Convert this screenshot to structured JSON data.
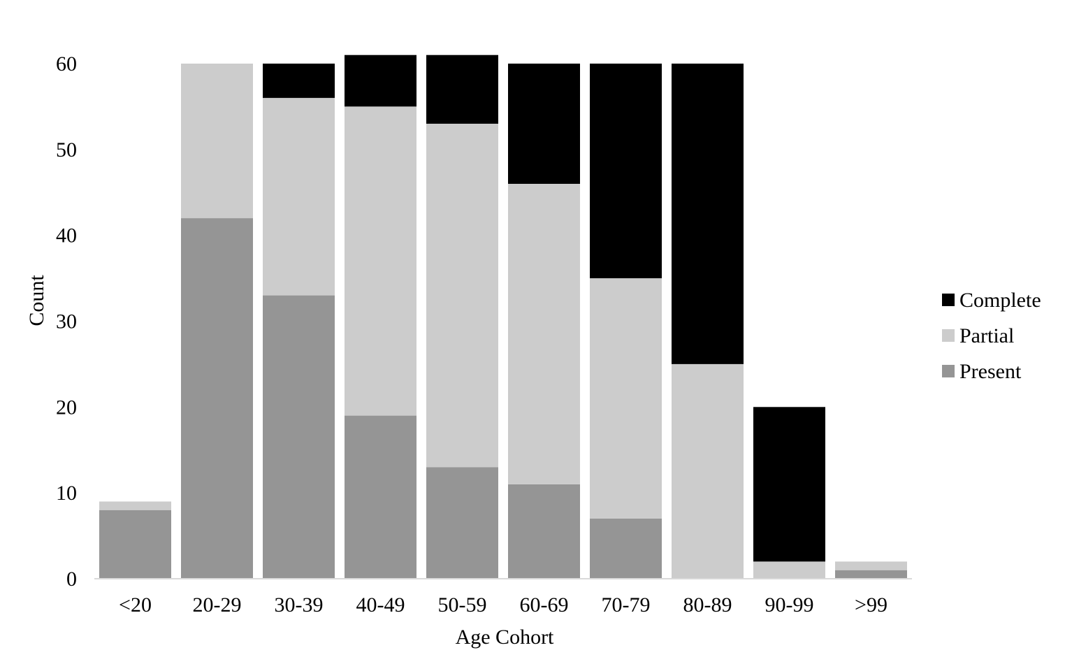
{
  "chart_data": {
    "type": "bar",
    "stacked": true,
    "title": "",
    "xlabel": "Age Cohort",
    "ylabel": "Count",
    "ylim": [
      0,
      60
    ],
    "yticks": [
      0,
      10,
      20,
      30,
      40,
      50,
      60
    ],
    "grid": false,
    "legend_position": "right",
    "categories": [
      "<20",
      "20-29",
      "30-39",
      "40-49",
      "50-59",
      "60-69",
      "70-79",
      "80-89",
      "90-99",
      ">99"
    ],
    "series": [
      {
        "name": "Present",
        "color": "#959595",
        "values": [
          8,
          42,
          33,
          19,
          13,
          11,
          7,
          0,
          0,
          1
        ]
      },
      {
        "name": "Partial",
        "color": "#cccccc",
        "values": [
          1,
          18,
          23,
          36,
          40,
          35,
          28,
          25,
          2,
          1
        ]
      },
      {
        "name": "Complete",
        "color": "#000000",
        "values": [
          0,
          0,
          4,
          6,
          8,
          14,
          25,
          35,
          18,
          0
        ]
      }
    ],
    "legend_order": [
      "Complete",
      "Partial",
      "Present"
    ]
  }
}
